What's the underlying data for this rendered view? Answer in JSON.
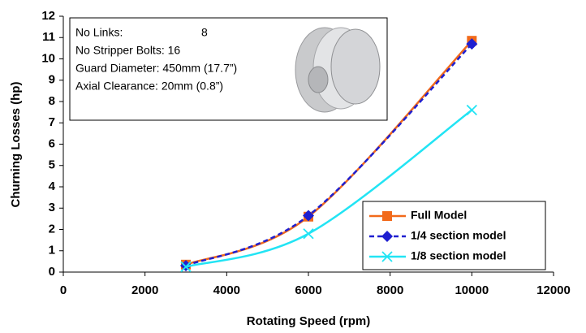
{
  "chart_data": {
    "type": "line",
    "x_label": "Rotating Speed (rpm)",
    "y_label": "Churning Losses (hp)",
    "x": [
      3000,
      6000,
      10000
    ],
    "series": [
      {
        "name": "Full Model",
        "color": "#f26a1b",
        "line_style": "solid",
        "marker": "square",
        "values": [
          0.35,
          2.6,
          10.85
        ]
      },
      {
        "name": "1/4 section model",
        "color": "#1f1fd0",
        "line_style": "dashed",
        "marker": "diamond",
        "values": [
          0.3,
          2.65,
          10.7
        ]
      },
      {
        "name": "1/8 section model",
        "color": "#22e4f4",
        "line_style": "solid",
        "marker": "x",
        "values": [
          0.25,
          1.8,
          7.6
        ]
      }
    ],
    "xlim": [
      0,
      12000
    ],
    "xticks": [
      0,
      2000,
      4000,
      6000,
      8000,
      10000,
      12000
    ],
    "ylim": [
      0,
      12
    ],
    "yticks": [
      0,
      1,
      2,
      3,
      4,
      5,
      6,
      7,
      8,
      9,
      10,
      11,
      12
    ],
    "legend": "lower right",
    "annotations": [
      "No Links:",
      "8",
      "No Stripper Bolts: 16",
      "Guard Diameter:  450mm (17.7”)",
      "Axial Clearance:   20mm (0.8”)"
    ]
  }
}
